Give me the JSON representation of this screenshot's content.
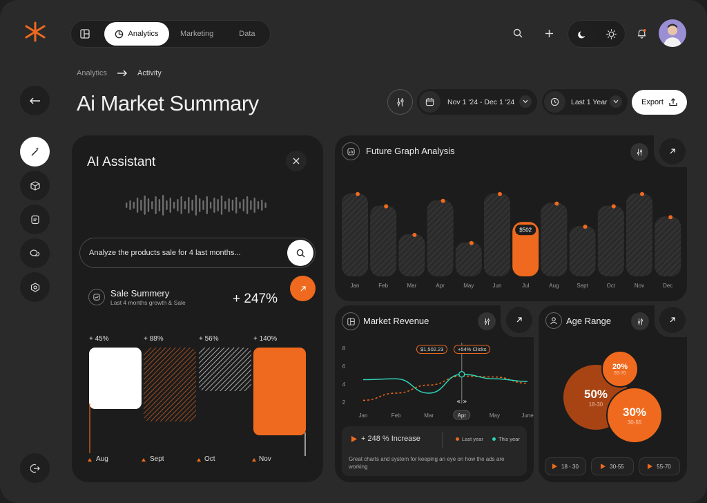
{
  "colors": {
    "accent": "#ef6a1e",
    "teal": "#2fd3b5",
    "bg": "#2a2a2a",
    "panel": "#1c1c1c"
  },
  "logo": "asterisk-logo",
  "nav": {
    "tabs": [
      {
        "label": "Analytics",
        "active": true
      },
      {
        "label": "Marketing"
      },
      {
        "label": "Data"
      }
    ]
  },
  "breadcrumb": {
    "root": "Analytics",
    "current": "Activity"
  },
  "page": {
    "title": "Ai Market Summary"
  },
  "toolbar": {
    "date_range": "Nov 1 '24 - Dec 1 '24",
    "period": "Last 1 Year",
    "export_label": "Export"
  },
  "assistant": {
    "title": "AI Assistant",
    "prompt_value": "Analyze the products sale for 4 last months...",
    "summary_title": "Sale Summery",
    "summary_sub": "Last 4 months growth & Sale",
    "summary_value": "+ 247%",
    "bars": [
      {
        "label": "+ 45%",
        "month": "Aug"
      },
      {
        "label": "+ 88%",
        "month": "Sept"
      },
      {
        "label": "+ 56%",
        "month": "Oct"
      },
      {
        "label": "+ 140%",
        "month": "Nov"
      }
    ]
  },
  "future": {
    "title": "Future Graph Analysis",
    "highlight_label": "$502",
    "chart_data": {
      "type": "bar",
      "categories": [
        "Jan",
        "Feb",
        "Mar",
        "Apr",
        "May",
        "Jun",
        "Jul",
        "Aug",
        "Sept",
        "Oct",
        "Nov",
        "Dec"
      ],
      "values": [
        122,
        104,
        62,
        112,
        50,
        122,
        80,
        108,
        74,
        104,
        122,
        88
      ],
      "highlight": "Jul"
    }
  },
  "revenue": {
    "title": "Market Revenue",
    "tooltip_value": "$1,502.23",
    "tooltip_clicks": "+54% Clicks",
    "increase": "+ 248 % Increase",
    "legend_last": "Last year",
    "legend_this": "This year",
    "note": "Great charts and system for keeping an eye on how the ads are working",
    "selected_month": "Apr",
    "chart_data": {
      "type": "line",
      "categories": [
        "Jan",
        "Feb",
        "Mar",
        "Apr",
        "May",
        "June"
      ],
      "yticks": [
        8,
        6,
        4,
        2
      ],
      "series": [
        {
          "name": "Last year",
          "values": [
            2.2,
            3.0,
            3.9,
            4.9,
            4.8,
            4.1
          ]
        },
        {
          "name": "This year",
          "values": [
            4.5,
            4.6,
            3.0,
            5.1,
            4.6,
            4.3
          ]
        }
      ]
    }
  },
  "age": {
    "title": "Age Range",
    "bubbles": [
      {
        "pct": "50%",
        "range": "18-30"
      },
      {
        "pct": "20%",
        "range": "55-70"
      },
      {
        "pct": "30%",
        "range": "30-55"
      }
    ],
    "filters": [
      "18 - 30",
      "30-55",
      "55-70"
    ]
  }
}
